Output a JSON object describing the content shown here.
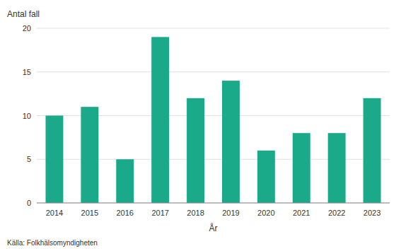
{
  "chart_data": {
    "type": "bar",
    "categories": [
      "2014",
      "2015",
      "2016",
      "2017",
      "2018",
      "2019",
      "2020",
      "2021",
      "2022",
      "2023"
    ],
    "values": [
      10,
      11,
      5,
      19,
      12,
      14,
      6,
      8,
      8,
      12
    ],
    "color": "#1aaa8a",
    "x_label": "År",
    "y_label": "Antal fall",
    "annotations": [
      "Källa: Folkhälsomyndigheten"
    ],
    "ylim": [
      0,
      20
    ],
    "yticks": [
      0,
      5,
      10,
      15,
      20
    ],
    "grid": true
  }
}
